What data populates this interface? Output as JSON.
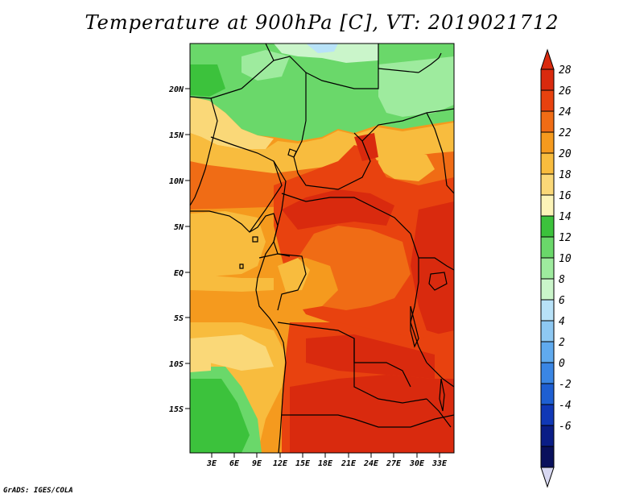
{
  "title": "Temperature at 900hPa [C], VT: 2019021712",
  "credit": "GrADS: IGES/COLA",
  "map": {
    "lon_labels": [
      "3E",
      "6E",
      "9E",
      "12E",
      "15E",
      "18E",
      "21E",
      "24E",
      "27E",
      "30E",
      "33E"
    ],
    "lat_labels": [
      "20N",
      "15N",
      "10N",
      "5N",
      "EQ",
      "5S",
      "10S",
      "15S"
    ]
  },
  "colorbar": {
    "levels": [
      "28",
      "26",
      "24",
      "22",
      "20",
      "18",
      "16",
      "14",
      "12",
      "10",
      "8",
      "6",
      "4",
      "2",
      "0",
      "-2",
      "-4",
      "-6"
    ],
    "colors": [
      "#d92a0e",
      "#e8420f",
      "#f06c15",
      "#f59a1e",
      "#f8bc3e",
      "#fad878",
      "#fcf4b8",
      "#3cc23c",
      "#6ad86a",
      "#9eeb9e",
      "#caf5ca",
      "#b8e2f8",
      "#8ec8f2",
      "#60aaee",
      "#3a86e4",
      "#1e5fd2",
      "#1038b6",
      "#0a1d86",
      "#09105c"
    ],
    "top_cap_color": "#d92a0e",
    "bottom_cap_color": "#d8d8f2"
  },
  "regions": {
    "sahara_cool": "#6ad86a",
    "sahara_coolest": "#9eeb9e",
    "sahara_edge": "#caf5ca",
    "sahara_cold": "#b8e2f8",
    "sahel_warm": "#f8bc3e",
    "sahel_mild": "#fad878",
    "central_hot": "#e8420f",
    "central_hottest": "#d92a0e",
    "central_orange": "#f06c15",
    "ocean_warm": "#f59a1e",
    "ocean_mild": "#f8bc3e",
    "south_atlantic_cool": "#3cc23c",
    "south_atlantic_light": "#6ad86a"
  }
}
